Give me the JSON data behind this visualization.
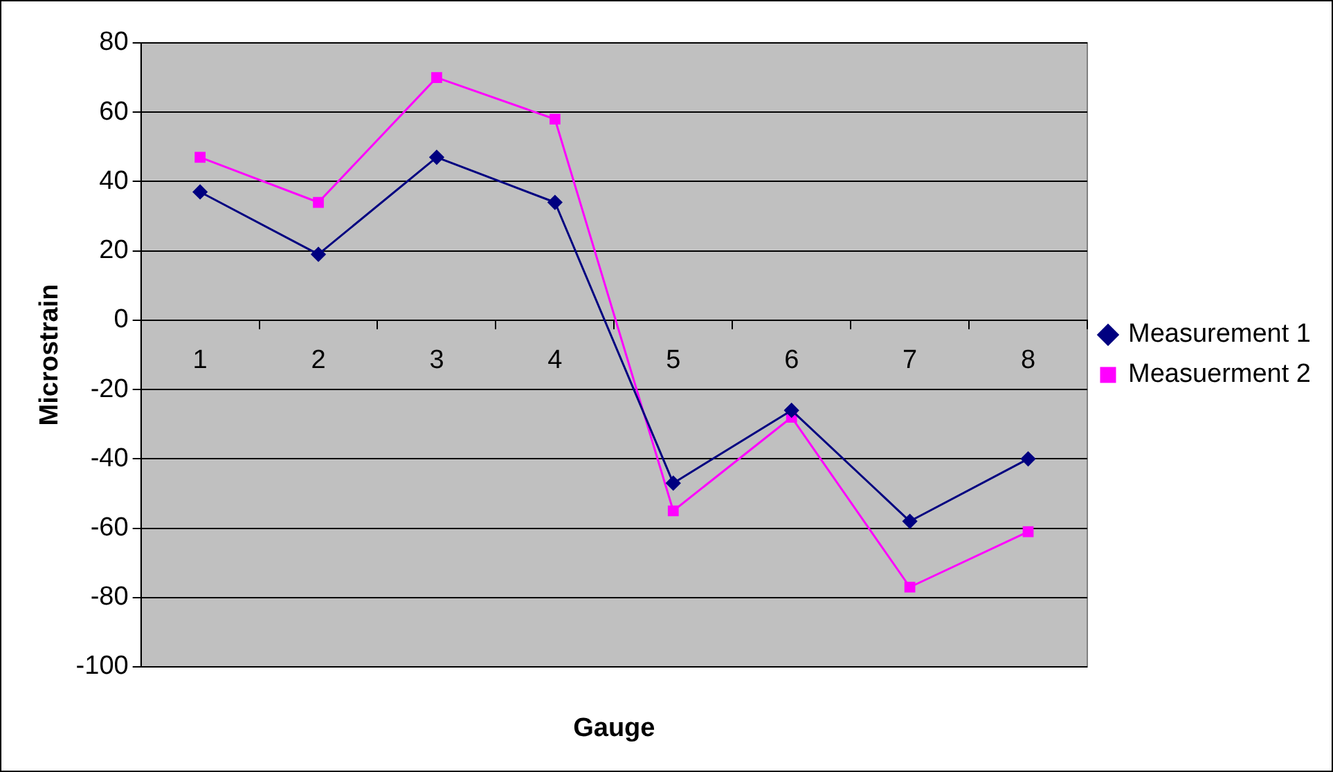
{
  "chart_data": {
    "type": "line",
    "xlabel": "Gauge",
    "ylabel": "Microstrain",
    "categories": [
      "1",
      "2",
      "3",
      "4",
      "5",
      "6",
      "7",
      "8"
    ],
    "series": [
      {
        "name": "Measurement 1",
        "color": "#000080",
        "marker": "diamond",
        "values": [
          37,
          19,
          47,
          34,
          -47,
          -26,
          -58,
          -40
        ]
      },
      {
        "name": "Measuerment 2",
        "color": "#ff00ff",
        "marker": "square",
        "values": [
          47,
          34,
          70,
          58,
          -55,
          -28,
          -77,
          -61
        ]
      }
    ],
    "ylim": [
      -100,
      80
    ],
    "yticks": [
      -100,
      -80,
      -60,
      -40,
      -20,
      0,
      20,
      40,
      60,
      80
    ],
    "grid": "y",
    "legend": "right",
    "line_style": "solid"
  }
}
